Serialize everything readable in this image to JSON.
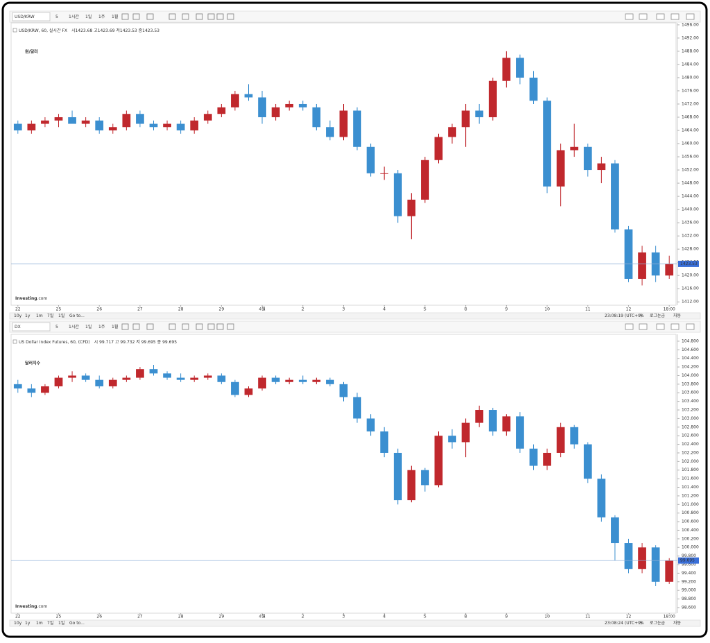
{
  "chart_data": [
    {
      "type": "candlestick",
      "toolbar": {
        "symbol": "USD/KRW",
        "intervals": [
          "5",
          "1시간",
          "1일",
          "1주",
          "1월"
        ]
      },
      "header": "USD/KRW, 60, 실시간 FX",
      "ohlc_text": "시1423.68 고1423.69 저1423.53 종1423.53",
      "title": "원/달러",
      "logo": "Investing",
      "logo_suffix": ".com",
      "categories": [
        "22",
        null,
        null,
        "25",
        null,
        null,
        "26",
        null,
        null,
        "27",
        null,
        null,
        "28",
        null,
        null,
        "29",
        null,
        null,
        "4월",
        null,
        null,
        "2",
        null,
        null,
        "3",
        null,
        null,
        "4",
        null,
        null,
        "5",
        null,
        null,
        "8",
        null,
        null,
        "9",
        null,
        null,
        "10",
        null,
        null,
        "11",
        null,
        null,
        "12",
        null,
        null,
        "18:00"
      ],
      "open": [
        1466,
        1464,
        1466,
        1467,
        1468,
        1466,
        1467,
        1464,
        1465,
        1469,
        1466,
        1465,
        1466,
        1464,
        1467,
        1469,
        1471,
        1475,
        1474,
        1468,
        1471,
        1472,
        1471,
        1465,
        1462,
        1470,
        1459,
        1451,
        1451,
        1438,
        1443,
        1455,
        1462,
        1465,
        1470,
        1468,
        1479,
        1486,
        1480,
        1473,
        1447,
        1458,
        1459,
        1452,
        1454,
        1434,
        1419,
        1427,
        1420
      ],
      "high": [
        1467,
        1467,
        1468,
        1469,
        1470,
        1468,
        1468,
        1466,
        1470,
        1470,
        1467,
        1467,
        1467,
        1468,
        1470,
        1472,
        1476,
        1478,
        1476,
        1472,
        1473,
        1473,
        1472,
        1467,
        1472,
        1471,
        1460,
        1453,
        1452,
        1445,
        1456,
        1463,
        1466,
        1472,
        1472,
        1480,
        1488,
        1487,
        1482,
        1474,
        1460,
        1466,
        1460,
        1456,
        1455,
        1435,
        1429,
        1429,
        1426
      ],
      "low": [
        1463,
        1463,
        1465,
        1465,
        1466,
        1465,
        1463,
        1463,
        1464,
        1465,
        1464,
        1464,
        1463,
        1463,
        1466,
        1468,
        1470,
        1473,
        1466,
        1467,
        1470,
        1470,
        1464,
        1461,
        1461,
        1458,
        1450,
        1449,
        1436,
        1431,
        1442,
        1454,
        1460,
        1459,
        1466,
        1467,
        1477,
        1478,
        1472,
        1445,
        1441,
        1456,
        1450,
        1448,
        1433,
        1418,
        1417,
        1418,
        1419
      ],
      "close": [
        1464,
        1466,
        1467,
        1468,
        1466,
        1467,
        1464,
        1465,
        1469,
        1466,
        1465,
        1466,
        1464,
        1467,
        1469,
        1471,
        1475,
        1474,
        1468,
        1471,
        1472,
        1471,
        1465,
        1462,
        1470,
        1459,
        1451,
        1451,
        1438,
        1443,
        1455,
        1462,
        1465,
        1470,
        1468,
        1479,
        1486,
        1480,
        1473,
        1447,
        1458,
        1459,
        1452,
        1454,
        1434,
        1419,
        1427,
        1420,
        1423.53
      ],
      "up_color": "#c0282d",
      "down_color": "#3b8fd0",
      "ylim": [
        1411,
        1496.6
      ],
      "yticks": [
        {
          "value": 1412,
          "label": "1412.00"
        },
        {
          "value": 1416,
          "label": "1416.00"
        },
        {
          "value": 1420,
          "label": "1420.00"
        },
        {
          "value": 1424,
          "label": "1424.00"
        },
        {
          "value": 1428,
          "label": "1428.00"
        },
        {
          "value": 1432,
          "label": "1432.00"
        },
        {
          "value": 1436,
          "label": "1436.00"
        },
        {
          "value": 1440,
          "label": "1440.00"
        },
        {
          "value": 1444,
          "label": "1444.00"
        },
        {
          "value": 1448,
          "label": "1448.00"
        },
        {
          "value": 1452,
          "label": "1452.00"
        },
        {
          "value": 1456,
          "label": "1456.00"
        },
        {
          "value": 1460,
          "label": "1460.00"
        },
        {
          "value": 1464,
          "label": "1464.00"
        },
        {
          "value": 1468,
          "label": "1468.00"
        },
        {
          "value": 1472,
          "label": "1472.00"
        },
        {
          "value": 1476,
          "label": "1476.00"
        },
        {
          "value": 1480,
          "label": "1480.00"
        },
        {
          "value": 1484,
          "label": "1484.00"
        },
        {
          "value": 1488,
          "label": "1488.00"
        },
        {
          "value": 1492,
          "label": "1492.00"
        },
        {
          "value": 1496,
          "label": "1496.00"
        }
      ],
      "last_price": {
        "value": 1423.53,
        "label": "1423.53"
      },
      "bottom_bar": {
        "ranges": [
          "10y",
          "1y",
          "1m",
          "7일",
          "1일",
          "Go to..."
        ],
        "clock": "23:08:19 (UTC+9)",
        "percent": "%",
        "log": "로그눈금",
        "auto": "자동"
      }
    },
    {
      "type": "candlestick",
      "toolbar": {
        "symbol": "DX",
        "intervals": [
          "5",
          "1시간",
          "1일",
          "1주",
          "1월"
        ]
      },
      "header": "US Dollar Index Futures, 60, (CFD)",
      "ohlc_text": "시 99.717 고 99.732 저 99.695 종 99.695",
      "title": "달러지수",
      "logo": "Investing",
      "logo_suffix": ".com",
      "categories": [
        "22",
        null,
        null,
        "25",
        null,
        null,
        "26",
        null,
        null,
        "27",
        null,
        null,
        "28",
        null,
        null,
        "29",
        null,
        null,
        "4월",
        null,
        null,
        "2",
        null,
        null,
        "3",
        null,
        null,
        "4",
        null,
        null,
        "5",
        null,
        null,
        "8",
        null,
        null,
        "9",
        null,
        null,
        "10",
        null,
        null,
        "11",
        null,
        null,
        "12",
        null,
        null,
        "18:00"
      ],
      "open": [
        103.8,
        103.7,
        103.6,
        103.75,
        103.95,
        104.0,
        103.9,
        103.75,
        103.9,
        103.95,
        104.15,
        104.05,
        103.95,
        103.9,
        103.95,
        104.0,
        103.85,
        103.55,
        103.7,
        103.95,
        103.85,
        103.9,
        103.85,
        103.9,
        103.8,
        103.5,
        103.0,
        102.7,
        102.2,
        101.1,
        101.8,
        101.45,
        102.6,
        102.45,
        102.9,
        103.2,
        102.7,
        103.05,
        102.3,
        101.9,
        102.2,
        102.8,
        102.4,
        101.6,
        100.7,
        100.1,
        99.5,
        100.0,
        99.2
      ],
      "high": [
        103.9,
        103.8,
        103.8,
        104.0,
        104.1,
        104.05,
        104.0,
        103.95,
        104.0,
        104.2,
        104.25,
        104.1,
        104.05,
        104.0,
        104.05,
        104.05,
        103.9,
        103.75,
        104.0,
        104.0,
        103.95,
        104.0,
        103.95,
        103.95,
        103.85,
        103.6,
        103.1,
        102.8,
        102.3,
        101.9,
        101.85,
        102.7,
        102.75,
        103.0,
        103.3,
        103.25,
        103.1,
        103.15,
        102.4,
        102.3,
        102.9,
        102.85,
        102.45,
        101.7,
        100.75,
        100.2,
        100.1,
        100.05,
        99.75
      ],
      "low": [
        103.6,
        103.5,
        103.55,
        103.7,
        103.85,
        103.85,
        103.7,
        103.7,
        103.85,
        103.9,
        104.0,
        103.9,
        103.85,
        103.85,
        103.9,
        103.8,
        103.5,
        103.5,
        103.65,
        103.8,
        103.8,
        103.8,
        103.8,
        103.75,
        103.4,
        102.9,
        102.6,
        102.1,
        101.0,
        101.05,
        101.3,
        101.4,
        102.3,
        102.1,
        102.8,
        102.6,
        102.6,
        102.2,
        101.8,
        101.8,
        102.1,
        102.3,
        101.5,
        100.6,
        99.7,
        99.4,
        99.4,
        99.1,
        99.15
      ],
      "close": [
        103.7,
        103.6,
        103.75,
        103.95,
        104.0,
        103.9,
        103.75,
        103.9,
        103.95,
        104.15,
        104.05,
        103.95,
        103.9,
        103.95,
        104.0,
        103.85,
        103.55,
        103.7,
        103.95,
        103.85,
        103.9,
        103.85,
        103.9,
        103.8,
        103.5,
        103.0,
        102.7,
        102.2,
        101.1,
        101.8,
        101.45,
        102.6,
        102.45,
        102.9,
        103.2,
        102.7,
        103.05,
        102.3,
        101.9,
        102.2,
        102.8,
        102.4,
        101.6,
        100.7,
        100.1,
        99.5,
        100.0,
        99.2,
        99.695
      ],
      "up_color": "#c0282d",
      "down_color": "#3b8fd0",
      "ylim": [
        98.47,
        104.96
      ],
      "yticks": [
        {
          "value": 98.6,
          "label": "98.600"
        },
        {
          "value": 98.8,
          "label": "98.800"
        },
        {
          "value": 99,
          "label": "99.000"
        },
        {
          "value": 99.2,
          "label": "99.200"
        },
        {
          "value": 99.4,
          "label": "99.400"
        },
        {
          "value": 99.6,
          "label": "99.600"
        },
        {
          "value": 99.8,
          "label": "99.800"
        },
        {
          "value": 100,
          "label": "100.000"
        },
        {
          "value": 100.2,
          "label": "100.200"
        },
        {
          "value": 100.4,
          "label": "100.400"
        },
        {
          "value": 100.6,
          "label": "100.600"
        },
        {
          "value": 100.8,
          "label": "100.800"
        },
        {
          "value": 101,
          "label": "101.000"
        },
        {
          "value": 101.2,
          "label": "101.200"
        },
        {
          "value": 101.4,
          "label": "101.400"
        },
        {
          "value": 101.6,
          "label": "101.600"
        },
        {
          "value": 101.8,
          "label": "101.800"
        },
        {
          "value": 102,
          "label": "102.000"
        },
        {
          "value": 102.2,
          "label": "102.200"
        },
        {
          "value": 102.4,
          "label": "102.400"
        },
        {
          "value": 102.6,
          "label": "102.600"
        },
        {
          "value": 102.8,
          "label": "102.800"
        },
        {
          "value": 103,
          "label": "103.000"
        },
        {
          "value": 103.2,
          "label": "103.200"
        },
        {
          "value": 103.4,
          "label": "103.400"
        },
        {
          "value": 103.6,
          "label": "103.600"
        },
        {
          "value": 103.8,
          "label": "103.800"
        },
        {
          "value": 104,
          "label": "104.000"
        },
        {
          "value": 104.2,
          "label": "104.200"
        },
        {
          "value": 104.4,
          "label": "104.400"
        },
        {
          "value": 104.6,
          "label": "104.600"
        },
        {
          "value": 104.8,
          "label": "104.800"
        }
      ],
      "last_price": {
        "value": 99.695,
        "label": "99.695"
      },
      "bottom_bar": {
        "ranges": [
          "10y",
          "1y",
          "1m",
          "7일",
          "1일",
          "Go to..."
        ],
        "clock": "23:08:24 (UTC+9)",
        "percent": "%",
        "log": "로그눈금",
        "auto": "자동"
      }
    }
  ]
}
